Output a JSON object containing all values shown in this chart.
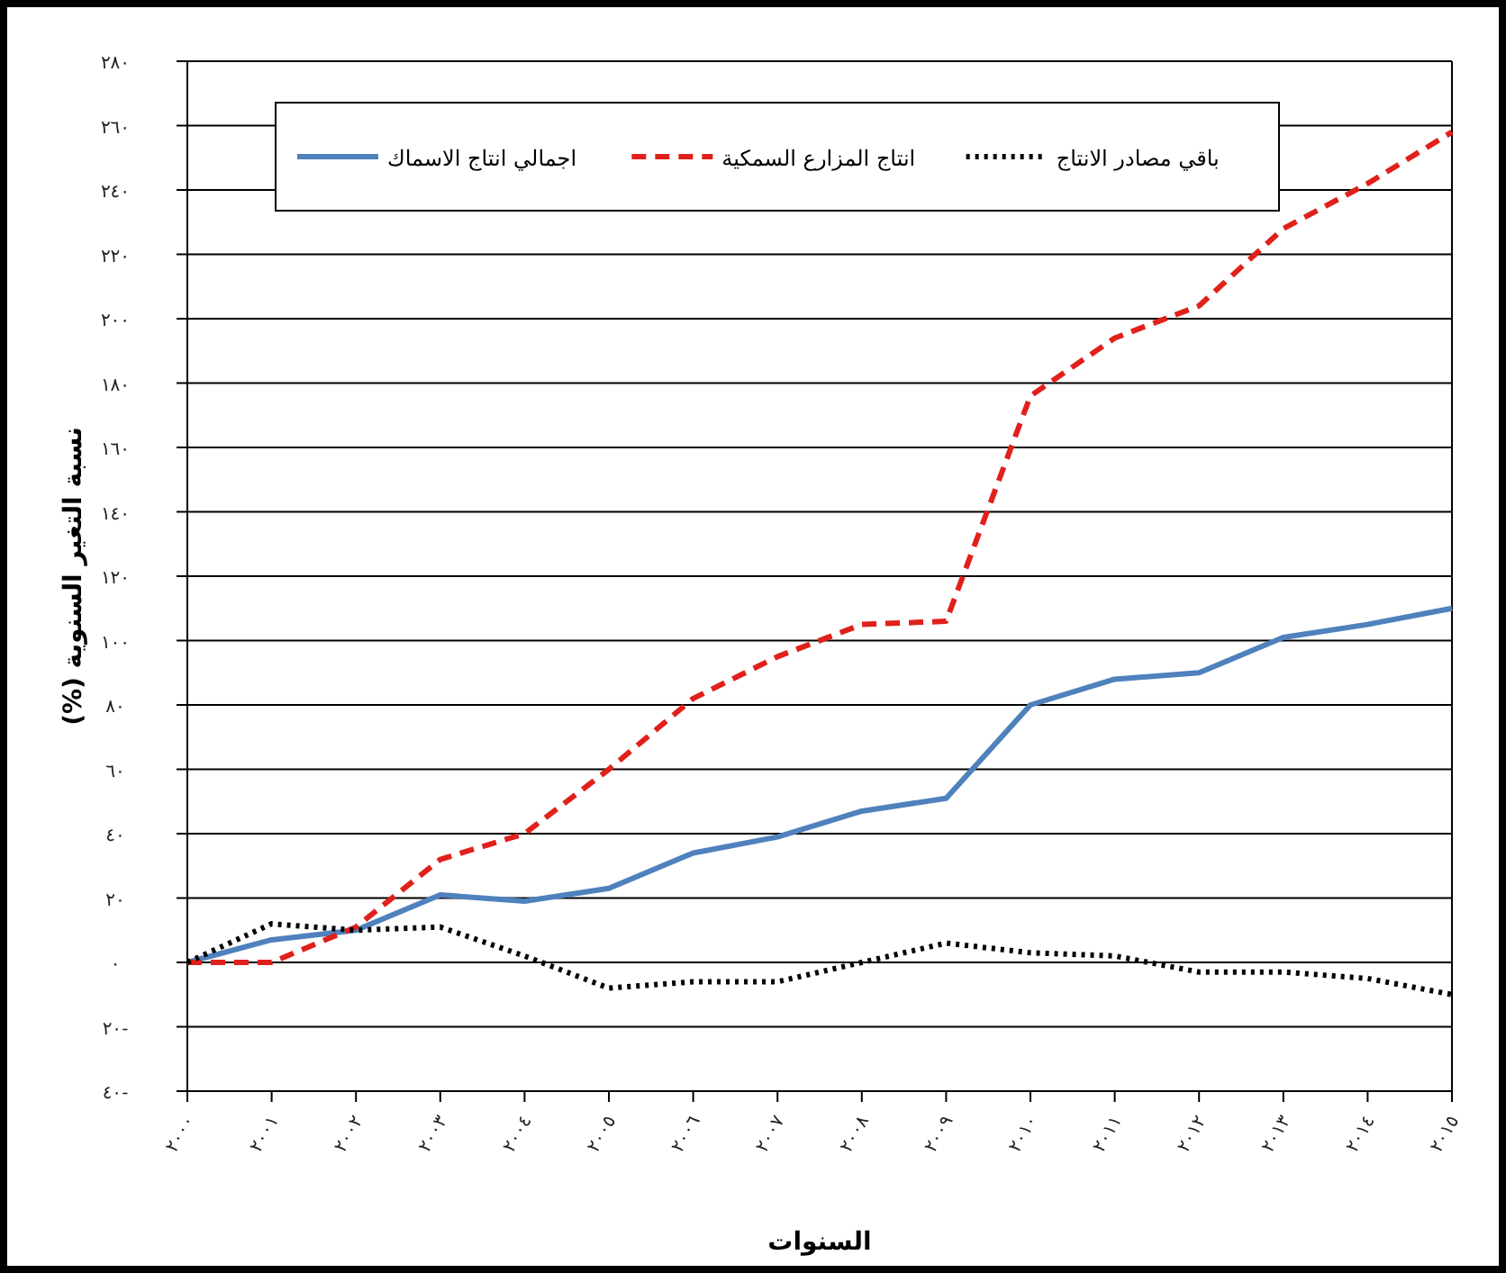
{
  "chart_data": {
    "type": "line",
    "xlabel": "السنوات",
    "ylabel": "نسبة التغير السنوية (%)",
    "categories": [
      "٢٠٠٠",
      "٢٠٠١",
      "٢٠٠٢",
      "٢٠٠٣",
      "٢٠٠٤",
      "٢٠٠٥",
      "٢٠٠٦",
      "٢٠٠٧",
      "٢٠٠٨",
      "٢٠٠٩",
      "٢٠١٠",
      "٢٠١١",
      "٢٠١٢",
      "٢٠١٣",
      "٢٠١٤",
      "٢٠١٥"
    ],
    "series": [
      {
        "name": "اجمالي انتاج الاسماك",
        "color": "#4f81bd",
        "line_style": "solid",
        "values": [
          0,
          7,
          10,
          21,
          19,
          23,
          34,
          39,
          47,
          51,
          80,
          88,
          90,
          101,
          105,
          110
        ]
      },
      {
        "name": "انتاج المزارع السمكية",
        "color": "#e0201b",
        "line_style": "dashed",
        "values": [
          0,
          0,
          11,
          32,
          40,
          60,
          82,
          95,
          105,
          106,
          176,
          194,
          204,
          228,
          242,
          258
        ]
      },
      {
        "name": "باقي مصادر الانتاج",
        "color": "#000000",
        "line_style": "dotted",
        "values": [
          0,
          12,
          10,
          11,
          2,
          -8,
          -6,
          -6,
          0,
          6,
          3,
          2,
          -3,
          -3,
          -5,
          -10
        ]
      }
    ],
    "ylim": [
      -40,
      280
    ],
    "yticks": [
      {
        "value": -40,
        "label": "٤٠-"
      },
      {
        "value": -20,
        "label": "٢٠-"
      },
      {
        "value": 0,
        "label": "٠"
      },
      {
        "value": 20,
        "label": "٢٠"
      },
      {
        "value": 40,
        "label": "٤٠"
      },
      {
        "value": 60,
        "label": "٦٠"
      },
      {
        "value": 80,
        "label": "٨٠"
      },
      {
        "value": 100,
        "label": "١٠٠"
      },
      {
        "value": 120,
        "label": "١٢٠"
      },
      {
        "value": 140,
        "label": "١٤٠"
      },
      {
        "value": 160,
        "label": "١٦٠"
      },
      {
        "value": 180,
        "label": "١٨٠"
      },
      {
        "value": 200,
        "label": "٢٠٠"
      },
      {
        "value": 220,
        "label": "٢٢٠"
      },
      {
        "value": 240,
        "label": "٢٤٠"
      },
      {
        "value": 260,
        "label": "٢٦٠"
      },
      {
        "value": 280,
        "label": "٢٨٠"
      }
    ],
    "grid": "y",
    "legend": "top",
    "marker": "none"
  }
}
